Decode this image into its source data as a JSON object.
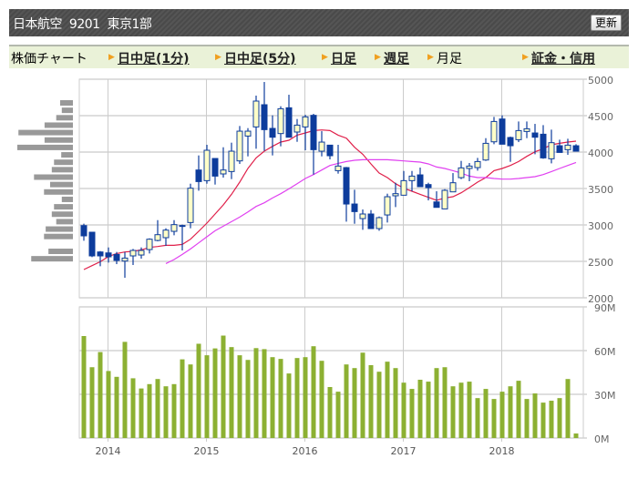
{
  "header": {
    "company": "日本航空",
    "code": "9201",
    "market": "東京1部",
    "refresh_label": "更新"
  },
  "tabs": {
    "label": "株価チャート",
    "items": [
      {
        "label": "日中足(1分)",
        "active": false
      },
      {
        "label": "日中足(5分)",
        "active": false
      },
      {
        "label": "日足",
        "active": false
      },
      {
        "label": "週足",
        "active": false
      },
      {
        "label": "月足",
        "active": true
      },
      {
        "label": "証金・信用",
        "active": false
      }
    ]
  },
  "colors": {
    "up_fill": "#ffffc8",
    "candle": "#0d3c9c",
    "ma_short": "#e0204a",
    "ma_long": "#e040f0",
    "volume": "#8cb032",
    "histogram": "#999999"
  },
  "chart_data": {
    "type": "candlestick",
    "period": "monthly",
    "start": "2013-10",
    "price_ticks": [
      "5000",
      "4500",
      "4000",
      "3500",
      "3000",
      "2500",
      "2000"
    ],
    "price_range": [
      2000,
      5000
    ],
    "volume_ticks": [
      "90M",
      "60M",
      "30M",
      "0M"
    ],
    "volume_range": [
      0,
      90
    ],
    "year_labels": [
      {
        "label": "2014",
        "index": 3
      },
      {
        "label": "2015",
        "index": 15
      },
      {
        "label": "2016",
        "index": 27
      },
      {
        "label": "2017",
        "index": 39
      },
      {
        "label": "2018",
        "index": 51
      }
    ],
    "ohlc": [
      [
        2991,
        3017,
        2783,
        2850
      ],
      [
        2900,
        2900,
        2558,
        2575
      ],
      [
        2629,
        2641,
        2433,
        2575
      ],
      [
        2616,
        2691,
        2483,
        2562
      ],
      [
        2595,
        2629,
        2462,
        2512
      ],
      [
        2504,
        2629,
        2275,
        2545
      ],
      [
        2575,
        2670,
        2450,
        2650
      ],
      [
        2587,
        2691,
        2537,
        2650
      ],
      [
        2662,
        2816,
        2608,
        2804
      ],
      [
        2787,
        3066,
        2775,
        2866
      ],
      [
        2825,
        2954,
        2712,
        2929
      ],
      [
        2912,
        3066,
        2858,
        3004
      ],
      [
        2992,
        3004,
        2650,
        2992
      ],
      [
        3033,
        3566,
        2954,
        3504
      ],
      [
        3754,
        3954,
        3470,
        3595
      ],
      [
        3608,
        4100,
        3566,
        4025
      ],
      [
        3912,
        3912,
        3554,
        3670
      ],
      [
        3700,
        4066,
        3650,
        3754
      ],
      [
        3733,
        4129,
        3629,
        4012
      ],
      [
        3879,
        4358,
        3837,
        4287
      ],
      [
        4220,
        4329,
        3941,
        4287
      ],
      [
        4345,
        4775,
        4046,
        4700
      ],
      [
        4650,
        4962,
        4016,
        4308
      ],
      [
        4325,
        4504,
        3954,
        4204
      ],
      [
        4254,
        4629,
        4079,
        4595
      ],
      [
        4608,
        4787,
        4204,
        4204
      ],
      [
        4275,
        4454,
        4141,
        4370
      ],
      [
        4345,
        4512,
        4025,
        4483
      ],
      [
        4504,
        4525,
        3691,
        4033
      ],
      [
        4012,
        4287,
        3941,
        4137
      ],
      [
        4095,
        4095,
        3900,
        3950
      ],
      [
        3745,
        4100,
        3704,
        3808
      ],
      [
        3787,
        3796,
        3045,
        3287
      ],
      [
        3287,
        3483,
        3016,
        3183
      ],
      [
        3087,
        3212,
        2933,
        3150
      ],
      [
        3150,
        3204,
        2950,
        2950
      ],
      [
        2950,
        3116,
        2920,
        3100
      ],
      [
        3137,
        3429,
        3033,
        3387
      ],
      [
        3400,
        3579,
        3245,
        3429
      ],
      [
        3408,
        3741,
        3408,
        3608
      ],
      [
        3608,
        3741,
        3462,
        3670
      ],
      [
        3687,
        3787,
        3525,
        3525
      ],
      [
        3554,
        3579,
        3337,
        3512
      ],
      [
        3316,
        3462,
        3241,
        3241
      ],
      [
        3220,
        3491,
        3220,
        3475
      ],
      [
        3454,
        3712,
        3454,
        3579
      ],
      [
        3649,
        3879,
        3629,
        3783
      ],
      [
        3775,
        3850,
        3600,
        3808
      ],
      [
        3787,
        3920,
        3745,
        3870
      ],
      [
        3891,
        4191,
        3879,
        4120
      ],
      [
        4141,
        4483,
        4108,
        4420
      ],
      [
        4454,
        4504,
        4108,
        4108
      ],
      [
        4200,
        4212,
        3866,
        4087
      ],
      [
        4170,
        4420,
        4137,
        4295
      ],
      [
        4283,
        4420,
        4191,
        4320
      ],
      [
        4262,
        4387,
        3970,
        4204
      ],
      [
        4245,
        4370,
        3908,
        3920
      ],
      [
        3908,
        4308,
        3845,
        4129
      ],
      [
        4087,
        4170,
        3995,
        3995
      ],
      [
        4033,
        4183,
        3962,
        4095
      ],
      [
        4087,
        4108,
        4012,
        4012
      ]
    ],
    "ma_short": [
      2387,
      2441,
      2495,
      2566,
      2608,
      2629,
      2637,
      2658,
      2691,
      2704,
      2720,
      2720,
      2733,
      2804,
      2912,
      3025,
      3150,
      3275,
      3420,
      3587,
      3775,
      3920,
      4012,
      4079,
      4137,
      4162,
      4233,
      4262,
      4295,
      4304,
      4295,
      4233,
      4191,
      4066,
      3970,
      3837,
      3712,
      3650,
      3566,
      3504,
      3462,
      3420,
      3379,
      3337,
      3370,
      3387,
      3441,
      3512,
      3587,
      3650,
      3745,
      3775,
      3816,
      3870,
      3941,
      4004,
      4046,
      4100,
      4120,
      4137,
      4150
    ],
    "ma_long": [
      null,
      null,
      null,
      null,
      null,
      null,
      null,
      null,
      null,
      null,
      2470,
      2525,
      2595,
      2670,
      2754,
      2837,
      2920,
      2983,
      3045,
      3108,
      3179,
      3254,
      3304,
      3370,
      3429,
      3495,
      3566,
      3637,
      3691,
      3754,
      3816,
      3845,
      3870,
      3887,
      3895,
      3895,
      3895,
      3895,
      3887,
      3879,
      3870,
      3862,
      3837,
      3795,
      3775,
      3745,
      3712,
      3670,
      3650,
      3650,
      3637,
      3629,
      3629,
      3637,
      3650,
      3662,
      3691,
      3733,
      3775,
      3816,
      3858
    ],
    "volume_millions": [
      70,
      48.6,
      59,
      46,
      42,
      66,
      41,
      34,
      37,
      40.5,
      35.5,
      37,
      54,
      50.5,
      64.7,
      56.8,
      61.5,
      70.3,
      62.4,
      56.8,
      53.6,
      61.7,
      61,
      55.5,
      54.3,
      44.3,
      54.9,
      55.5,
      63,
      53,
      35,
      31.8,
      50.5,
      48,
      58.6,
      50,
      45.5,
      52.4,
      48,
      38,
      33.7,
      40,
      38.7,
      48,
      48.6,
      35.5,
      38,
      38.7,
      27.4,
      33.7,
      26.8,
      31.8,
      35.5,
      39.3,
      26.8,
      30.6,
      24.3,
      25.6,
      27.4,
      40.5,
      3.1
    ],
    "price_volume_bands": {
      "prices": [
        4800,
        4700,
        4600,
        4500,
        4400,
        4300,
        4200,
        4100,
        4000,
        3900,
        3800,
        3700,
        3600,
        3500,
        3400,
        3300,
        3200,
        3100,
        3000,
        2900,
        2800,
        2700
      ],
      "relative_volume_percent": [
        23,
        20,
        30,
        51,
        98,
        51,
        100,
        21,
        34,
        38,
        70,
        41,
        52,
        20,
        34,
        38,
        30,
        49,
        52,
        0,
        44,
        75
      ]
    }
  }
}
